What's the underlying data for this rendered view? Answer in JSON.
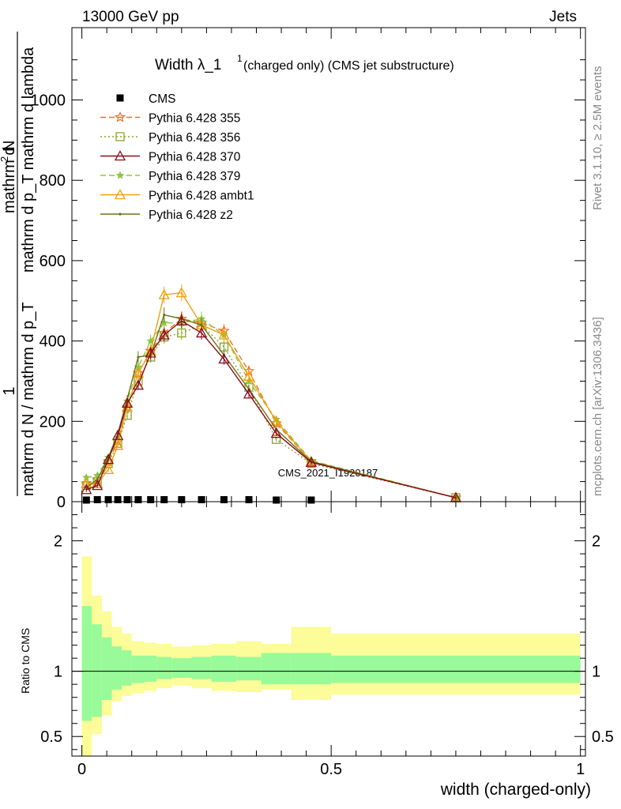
{
  "header": {
    "left": "13000 GeV pp",
    "right": "Jets"
  },
  "side_labels": {
    "rivet": "Rivet 3.1.10, ≥ 2.5M events",
    "mcplots": "mcplots.cern.ch [arXiv:1306.3436]"
  },
  "watermark": "CMS_2021_I1920187",
  "chart_data": [
    {
      "type": "line",
      "title_main": "Width λ_1",
      "title_sup": "1",
      "title_rest": " (charged only) (CMS jet substructure)",
      "ylabel_parts": {
        "numerator": "1",
        "denominator": "mathrm d N / mathrm d p_T",
        "top_numerator": "mathrm d",
        "top_numerator_sup": "2",
        "top_numerator_rest": "N",
        "top_denominator": "mathrm d p_T mathrm d lambda"
      },
      "xlim": [
        -0.02,
        1.01
      ],
      "ylim": [
        0,
        1180
      ],
      "yticks": [
        "0",
        "200",
        "400",
        "600",
        "800",
        "1000"
      ],
      "x": [
        0.009,
        0.031,
        0.053,
        0.072,
        0.091,
        0.113,
        0.138,
        0.165,
        0.2,
        0.24,
        0.285,
        0.335,
        0.39,
        0.46,
        0.75
      ],
      "series": [
        {
          "name": "CMS",
          "color": "#000000",
          "style": "data",
          "marker": "square",
          "values": [
            4,
            5,
            5,
            5,
            5,
            5,
            5,
            5,
            5,
            5,
            5,
            5,
            4,
            4,
            null
          ]
        },
        {
          "name": "Pythia 6.428 355",
          "color": "#f07020",
          "dash": "7,4",
          "marker": "star",
          "values": [
            45,
            55,
            100,
            150,
            235,
            320,
            375,
            420,
            455,
            445,
            425,
            325,
            195,
            100,
            10
          ]
        },
        {
          "name": "Pythia 6.428 356",
          "color": "#8aa52a",
          "dash": "2,3",
          "marker": "open-square",
          "values": [
            40,
            50,
            95,
            145,
            215,
            300,
            360,
            410,
            420,
            440,
            385,
            285,
            155,
            95,
            10
          ]
        },
        {
          "name": "Pythia 6.428 370",
          "color": "#8b0a1a",
          "dash": "",
          "marker": "open-triangle",
          "values": [
            30,
            40,
            105,
            165,
            245,
            290,
            370,
            415,
            450,
            420,
            355,
            268,
            170,
            98,
            10
          ]
        },
        {
          "name": "Pythia 6.428 379",
          "color": "#8cc63f",
          "dash": "7,4",
          "marker": "small-star",
          "values": [
            60,
            65,
            110,
            160,
            250,
            335,
            400,
            445,
            445,
            455,
            415,
            300,
            205,
            102,
            10
          ]
        },
        {
          "name": "Pythia 6.428 ambt1",
          "color": "#f0a010",
          "dash": "",
          "marker": "open-triangle",
          "values": [
            45,
            45,
            80,
            140,
            235,
            320,
            375,
            515,
            520,
            440,
            415,
            312,
            200,
            100,
            10
          ]
        },
        {
          "name": "Pythia 6.428 z2",
          "color": "#6b7414",
          "dash": "",
          "marker": "dot",
          "values": [
            35,
            55,
            110,
            170,
            255,
            360,
            365,
            465,
            455,
            440,
            365,
            280,
            180,
            100,
            10
          ]
        }
      ]
    },
    {
      "type": "area",
      "ylabel": "Ratio to CMS",
      "xlabel": "width (charged-only)",
      "xlim": [
        -0.02,
        1.01
      ],
      "ylim": [
        0.35,
        2.3
      ],
      "yticks": [
        "0.5",
        "1",
        "2"
      ],
      "xticks": [
        "0",
        "0.5",
        "1"
      ],
      "bin_edges": [
        0,
        0.02,
        0.04,
        0.06,
        0.08,
        0.1,
        0.125,
        0.15,
        0.18,
        0.22,
        0.26,
        0.31,
        0.36,
        0.42,
        0.5,
        1.0
      ],
      "band_inner": [
        [
          0.62,
          1.5
        ],
        [
          0.65,
          1.36
        ],
        [
          0.78,
          1.26
        ],
        [
          0.86,
          1.19
        ],
        [
          0.89,
          1.16
        ],
        [
          0.91,
          1.12
        ],
        [
          0.92,
          1.12
        ],
        [
          0.94,
          1.11
        ],
        [
          0.95,
          1.1
        ],
        [
          0.94,
          1.11
        ],
        [
          0.92,
          1.12
        ],
        [
          0.93,
          1.11
        ],
        [
          0.9,
          1.14
        ],
        [
          0.9,
          1.14
        ],
        [
          0.91,
          1.12
        ]
      ],
      "band_outer": [
        [
          0.35,
          1.88
        ],
        [
          0.52,
          1.58
        ],
        [
          0.66,
          1.46
        ],
        [
          0.77,
          1.34
        ],
        [
          0.81,
          1.29
        ],
        [
          0.83,
          1.23
        ],
        [
          0.85,
          1.22
        ],
        [
          0.87,
          1.21
        ],
        [
          0.89,
          1.19
        ],
        [
          0.87,
          1.2
        ],
        [
          0.85,
          1.21
        ],
        [
          0.84,
          1.23
        ],
        [
          0.86,
          1.21
        ],
        [
          0.78,
          1.34
        ],
        [
          0.82,
          1.29
        ]
      ],
      "inner_color": "#98fa98",
      "outer_color": "#fcfc98"
    }
  ]
}
